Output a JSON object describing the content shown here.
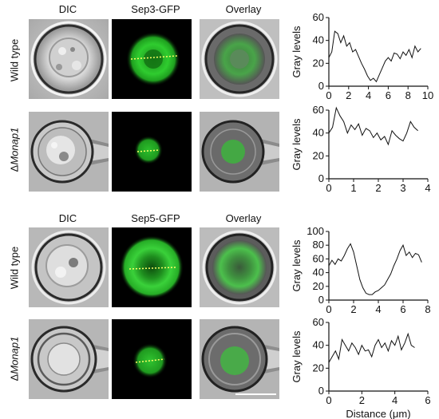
{
  "figure": {
    "column_headers": [
      "DIC",
      "Sep3-GFP",
      "Overlay"
    ],
    "column_headers_b": [
      "DIC",
      "Sep5-GFP",
      "Overlay"
    ],
    "rows": [
      {
        "label": "Wild type"
      },
      {
        "label_prefix": "Δ",
        "label_italic": "Monap1"
      },
      {
        "label": "Wild type"
      },
      {
        "label_prefix": "Δ",
        "label_italic": "Monap1"
      }
    ],
    "colors": {
      "gfp": "#33cc33",
      "background": "#000000",
      "line": "#111111",
      "dashed": "#ffff66"
    }
  },
  "chart_data": [
    {
      "type": "line",
      "ylabel": "Gray levels",
      "xlabel": "",
      "xlim": [
        0,
        10
      ],
      "ylim": [
        0,
        60
      ],
      "xticks": [
        0,
        2,
        4,
        6,
        8,
        10
      ],
      "yticks": [
        0,
        20,
        40,
        60
      ],
      "series": [
        {
          "x": [
            0,
            0.3,
            0.6,
            0.9,
            1.2,
            1.5,
            1.8,
            2.1,
            2.4,
            2.7,
            3.0,
            3.3,
            3.6,
            3.9,
            4.2,
            4.5,
            4.8,
            5.1,
            5.4,
            5.7,
            6.0,
            6.3,
            6.6,
            6.9,
            7.2,
            7.5,
            7.8,
            8.1,
            8.4,
            8.7,
            9.0,
            9.3
          ],
          "y": [
            25,
            30,
            48,
            46,
            38,
            44,
            35,
            38,
            30,
            32,
            26,
            20,
            15,
            9,
            5,
            7,
            4,
            10,
            16,
            22,
            25,
            22,
            29,
            28,
            24,
            30,
            27,
            32,
            25,
            35,
            30,
            33
          ]
        }
      ]
    },
    {
      "type": "line",
      "ylabel": "Gray levels",
      "xlabel": "",
      "xlim": [
        0,
        4
      ],
      "ylim": [
        0,
        60
      ],
      "xticks": [
        0,
        1,
        2,
        3,
        4
      ],
      "yticks": [
        0,
        20,
        40,
        60
      ],
      "series": [
        {
          "x": [
            0,
            0.15,
            0.3,
            0.45,
            0.6,
            0.75,
            0.9,
            1.05,
            1.2,
            1.35,
            1.5,
            1.65,
            1.8,
            1.95,
            2.1,
            2.25,
            2.4,
            2.55,
            2.7,
            2.85,
            3.0,
            3.15,
            3.3,
            3.45,
            3.6
          ],
          "y": [
            40,
            45,
            62,
            55,
            50,
            40,
            47,
            43,
            48,
            38,
            44,
            42,
            36,
            40,
            34,
            37,
            30,
            42,
            38,
            35,
            33,
            40,
            50,
            45,
            42
          ]
        }
      ]
    },
    {
      "type": "line",
      "ylabel": "Gray levels",
      "xlabel": "",
      "xlim": [
        0,
        8
      ],
      "ylim": [
        0,
        100
      ],
      "xticks": [
        0,
        2,
        4,
        6,
        8
      ],
      "yticks": [
        0,
        20,
        40,
        60,
        80,
        100
      ],
      "series": [
        {
          "x": [
            0,
            0.25,
            0.5,
            0.75,
            1.0,
            1.25,
            1.5,
            1.75,
            2.0,
            2.25,
            2.5,
            2.75,
            3.0,
            3.25,
            3.5,
            3.75,
            4.0,
            4.25,
            4.5,
            4.75,
            5.0,
            5.25,
            5.5,
            5.75,
            6.0,
            6.25,
            6.5,
            6.75,
            7.0,
            7.25,
            7.5
          ],
          "y": [
            50,
            58,
            52,
            60,
            57,
            65,
            75,
            82,
            70,
            50,
            30,
            18,
            10,
            8,
            8,
            12,
            14,
            18,
            22,
            30,
            38,
            50,
            60,
            72,
            80,
            65,
            70,
            62,
            68,
            66,
            55
          ]
        }
      ]
    },
    {
      "type": "line",
      "ylabel": "Gray levels",
      "xlabel": "Distance (μm)",
      "xlim": [
        0,
        6
      ],
      "ylim": [
        0,
        60
      ],
      "xticks": [
        0,
        2,
        4,
        6
      ],
      "yticks": [
        0,
        20,
        40,
        60
      ],
      "series": [
        {
          "x": [
            0,
            0.2,
            0.4,
            0.6,
            0.8,
            1.0,
            1.2,
            1.4,
            1.6,
            1.8,
            2.0,
            2.2,
            2.4,
            2.6,
            2.8,
            3.0,
            3.2,
            3.4,
            3.6,
            3.8,
            4.0,
            4.2,
            4.4,
            4.6,
            4.8,
            5.0,
            5.2
          ],
          "y": [
            25,
            30,
            35,
            28,
            45,
            40,
            35,
            42,
            38,
            32,
            40,
            35,
            36,
            30,
            40,
            45,
            38,
            42,
            35,
            44,
            40,
            48,
            36,
            42,
            50,
            40,
            38
          ]
        }
      ]
    }
  ]
}
